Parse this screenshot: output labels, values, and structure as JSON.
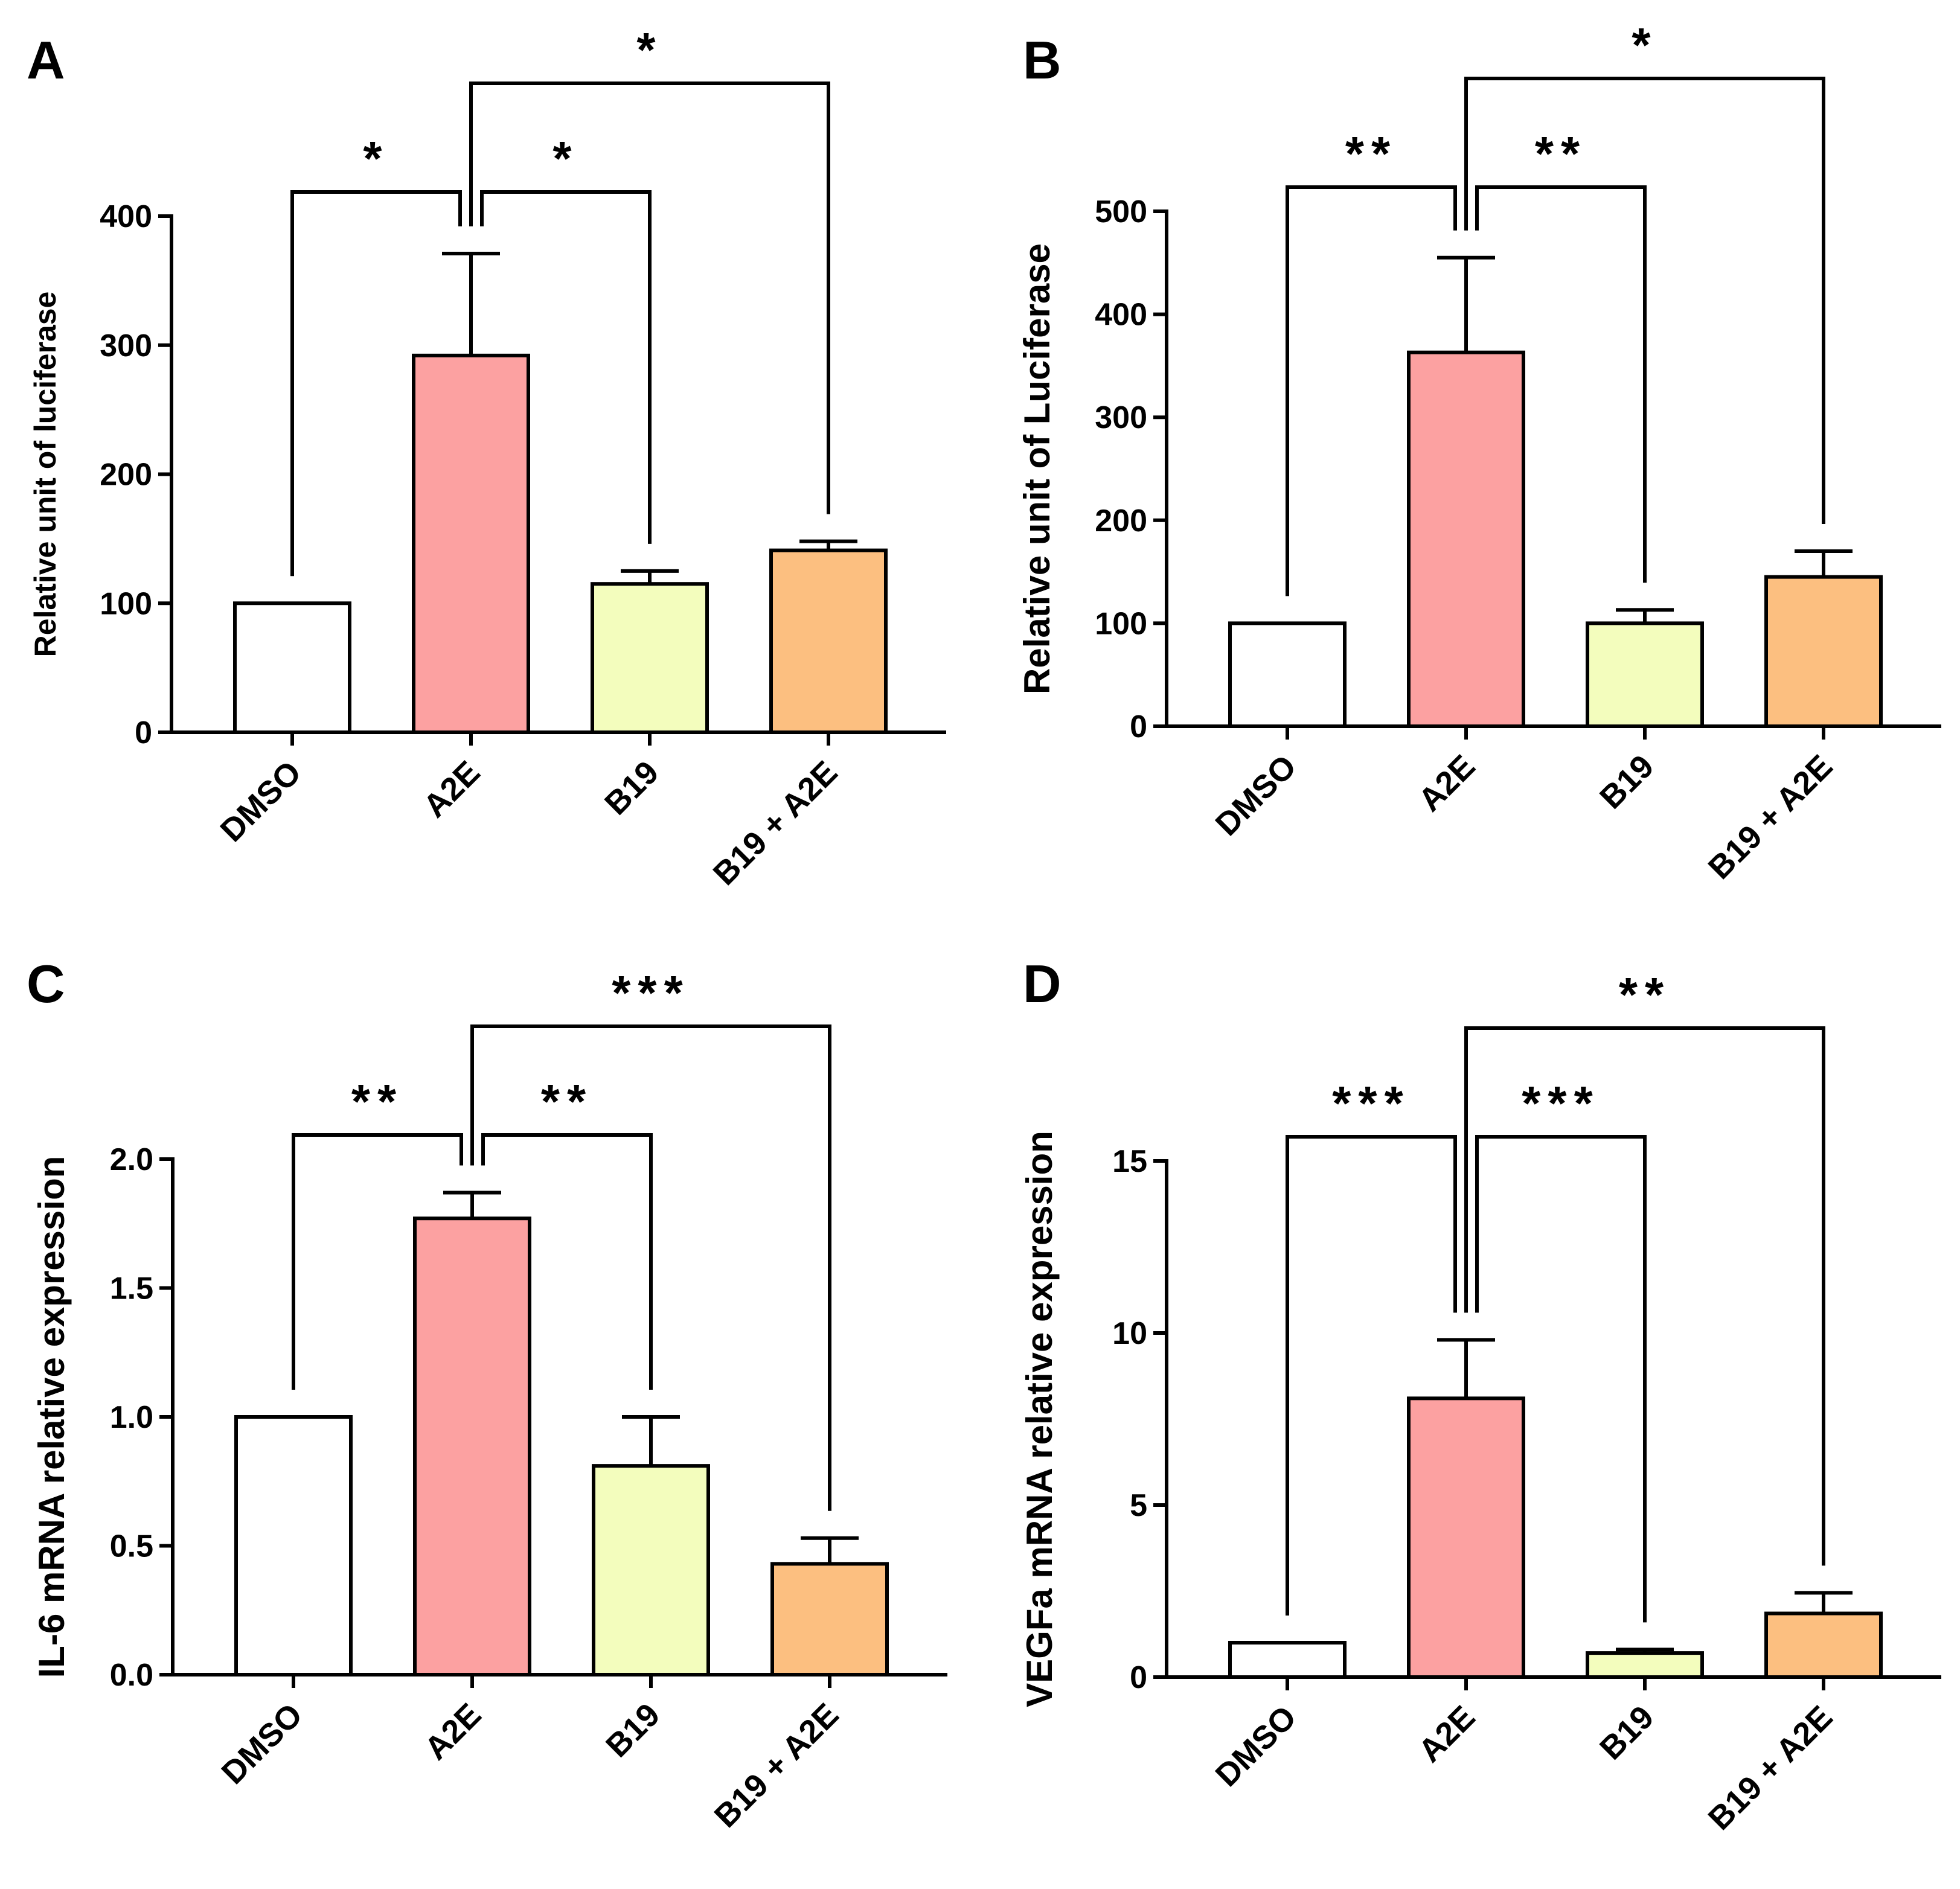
{
  "figure": {
    "panels_order": [
      "A",
      "B",
      "C",
      "D"
    ]
  },
  "chart_data": [
    {
      "panel_label": "A",
      "type": "bar",
      "ylabel": "Relative unit of luciferase",
      "xlabel": "",
      "categories": [
        "DMSO",
        "A2E",
        "B19",
        "B19 + A2E"
      ],
      "values": [
        100,
        292,
        115,
        141
      ],
      "error": [
        0,
        79,
        10,
        7
      ],
      "colors": [
        "#ffffff",
        "#fca1a1",
        "#f3fdbd",
        "#fcbf80"
      ],
      "ylim": [
        0,
        400
      ],
      "yticks": [
        "0",
        "100",
        "200",
        "300",
        "400"
      ],
      "ytick_values": [
        0,
        100,
        200,
        300,
        400
      ],
      "significance": [
        {
          "from": 0,
          "to": 1,
          "label": "*"
        },
        {
          "from": 1,
          "to": 2,
          "label": "*"
        },
        {
          "from": 1,
          "to": 3,
          "label": "*"
        }
      ],
      "grid": false,
      "legend": "none"
    },
    {
      "panel_label": "B",
      "type": "bar",
      "ylabel": "Relative unit of Luciferase",
      "xlabel": "",
      "categories": [
        "DMSO",
        "A2E",
        "B19",
        "B19 + A2E"
      ],
      "values": [
        100,
        363,
        100,
        145
      ],
      "error": [
        0,
        92,
        13,
        25
      ],
      "colors": [
        "#ffffff",
        "#fca1a1",
        "#f3fdbd",
        "#fcbf80"
      ],
      "ylim": [
        0,
        500
      ],
      "yticks": [
        "0",
        "100",
        "200",
        "300",
        "400",
        "500"
      ],
      "ytick_values": [
        0,
        100,
        200,
        300,
        400,
        500
      ],
      "significance": [
        {
          "from": 0,
          "to": 1,
          "label": "**"
        },
        {
          "from": 1,
          "to": 2,
          "label": "**"
        },
        {
          "from": 1,
          "to": 3,
          "label": "*"
        }
      ],
      "grid": false,
      "legend": "none"
    },
    {
      "panel_label": "C",
      "type": "bar",
      "ylabel": "IL-6 mRNA relative expression",
      "xlabel": "",
      "categories": [
        "DMSO",
        "A2E",
        "B19",
        "B19 + A2E"
      ],
      "values": [
        1.0,
        1.77,
        0.81,
        0.43
      ],
      "error": [
        0,
        0.1,
        0.19,
        0.1
      ],
      "colors": [
        "#ffffff",
        "#fca1a1",
        "#f3fdbd",
        "#fcbf80"
      ],
      "ylim": [
        0,
        2.0
      ],
      "yticks": [
        "0.0",
        "0.5",
        "1.0",
        "1.5",
        "2.0"
      ],
      "ytick_values": [
        0,
        0.5,
        1.0,
        1.5,
        2.0
      ],
      "significance": [
        {
          "from": 0,
          "to": 1,
          "label": "**"
        },
        {
          "from": 1,
          "to": 2,
          "label": "**"
        },
        {
          "from": 1,
          "to": 3,
          "label": "***"
        }
      ],
      "grid": false,
      "legend": "none"
    },
    {
      "panel_label": "D",
      "type": "bar",
      "ylabel": "VEGFa mRNA relative expression",
      "xlabel": "",
      "categories": [
        "DMSO",
        "A2E",
        "B19",
        "B19 + A2E"
      ],
      "values": [
        1.0,
        8.1,
        0.7,
        1.85
      ],
      "error": [
        0,
        1.7,
        0.1,
        0.6
      ],
      "colors": [
        "#ffffff",
        "#fca1a1",
        "#f3fdbd",
        "#fcbf80"
      ],
      "ylim": [
        0,
        15
      ],
      "yticks": [
        "0",
        "5",
        "10",
        "15"
      ],
      "ytick_values": [
        0,
        5,
        10,
        15
      ],
      "significance": [
        {
          "from": 0,
          "to": 1,
          "label": "***"
        },
        {
          "from": 1,
          "to": 2,
          "label": "***"
        },
        {
          "from": 1,
          "to": 3,
          "label": "**"
        }
      ],
      "grid": false,
      "legend": "none"
    }
  ]
}
